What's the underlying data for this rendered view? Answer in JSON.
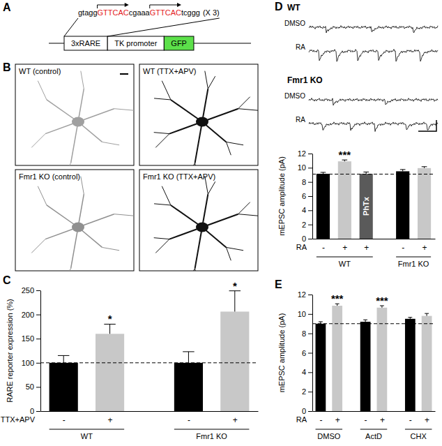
{
  "diagram": {
    "panel": "A",
    "sequence": [
      {
        "text": "gtagg"
      },
      {
        "text": "GTTCAC",
        "color": "#e41a1c"
      },
      {
        "text": "cgaaa"
      },
      {
        "text": "GTTCAC",
        "color": "#e41a1c"
      },
      {
        "text": "tcggg"
      }
    ],
    "repeat": "(X 3)",
    "elements": [
      {
        "label": "3xRARE"
      },
      {
        "label": "TK promoter"
      },
      {
        "label": "GFP",
        "color": "#5ce04a"
      }
    ]
  },
  "images": {
    "panel": "B",
    "items": [
      {
        "label": "WT (control)",
        "color": "#a0a0a0"
      },
      {
        "label": "WT (TTX+APV)",
        "color": "#111111"
      },
      {
        "label": "Fmr1 KO (control)",
        "color": "#909090"
      },
      {
        "label": "Fmr1 KO (TTX+APV)",
        "color": "#111111"
      }
    ]
  },
  "traces": {
    "panel": "D",
    "groups": [
      {
        "label": "WT",
        "rows": [
          "DMSO",
          "RA"
        ]
      },
      {
        "label": "Fmr1 KO",
        "rows": [
          "DMSO",
          "RA"
        ]
      }
    ]
  },
  "chart_data": [
    {
      "panel": "C",
      "type": "bar",
      "y_label": "RARE reporter expression (%)",
      "x_label": "TTX+APV",
      "categories": [
        "-",
        "+",
        "-",
        "+"
      ],
      "group_labels": [
        "WT",
        "WT",
        "Fmr1 KO",
        "Fmr1 KO"
      ],
      "values": [
        100,
        160,
        100,
        206
      ],
      "errors": [
        15,
        20,
        23,
        43
      ],
      "colors": [
        "#000000",
        "#c8c8c8",
        "#000000",
        "#c8c8c8"
      ],
      "significance": [
        null,
        "*",
        null,
        "*"
      ],
      "reference_line": 100,
      "ylim": [
        0,
        250
      ],
      "yticks": [
        0,
        50,
        100,
        150,
        200,
        250
      ]
    },
    {
      "type": "bar",
      "y_label": "mEPSC amplitude (pA)",
      "x_label": "RA",
      "categories": [
        "-",
        "+",
        "+",
        "-",
        "+"
      ],
      "group_labels": [
        "WT",
        "WT",
        "WT",
        "Fmr1 KO",
        "Fmr1 KO"
      ],
      "values": [
        9.15,
        10.9,
        9.15,
        9.5,
        9.95
      ],
      "errors": [
        0.2,
        0.2,
        0.25,
        0.25,
        0.2
      ],
      "colors": [
        "#000000",
        "#c8c8c8",
        "#5a5a5a",
        "#000000",
        "#c8c8c8"
      ],
      "bar_labels": [
        null,
        null,
        "PhTx",
        null,
        null
      ],
      "significance": [
        null,
        "***",
        null,
        null,
        null
      ],
      "reference_line": 9.1,
      "ylim": [
        0,
        12
      ],
      "yticks": [
        0,
        2,
        4,
        6,
        8,
        10,
        12
      ]
    },
    {
      "panel": "E",
      "type": "bar",
      "y_label": "mEPSC amplitude (pA)",
      "x_label": "RA",
      "categories": [
        "-",
        "+",
        "-",
        "+",
        "-",
        "+"
      ],
      "group_labels": [
        "DMSO",
        "DMSO",
        "ActD",
        "ActD",
        "CHX",
        "CHX"
      ],
      "values": [
        9.0,
        10.85,
        9.2,
        10.65,
        9.5,
        9.8
      ],
      "errors": [
        0.2,
        0.2,
        0.2,
        0.2,
        0.15,
        0.25
      ],
      "colors": [
        "#000000",
        "#c8c8c8",
        "#000000",
        "#c8c8c8",
        "#000000",
        "#c8c8c8"
      ],
      "significance": [
        null,
        "***",
        null,
        "***",
        null,
        null
      ],
      "reference_line": 9.0,
      "ylim": [
        0,
        12
      ],
      "yticks": [
        0,
        2,
        4,
        6,
        8,
        10,
        12
      ]
    }
  ]
}
